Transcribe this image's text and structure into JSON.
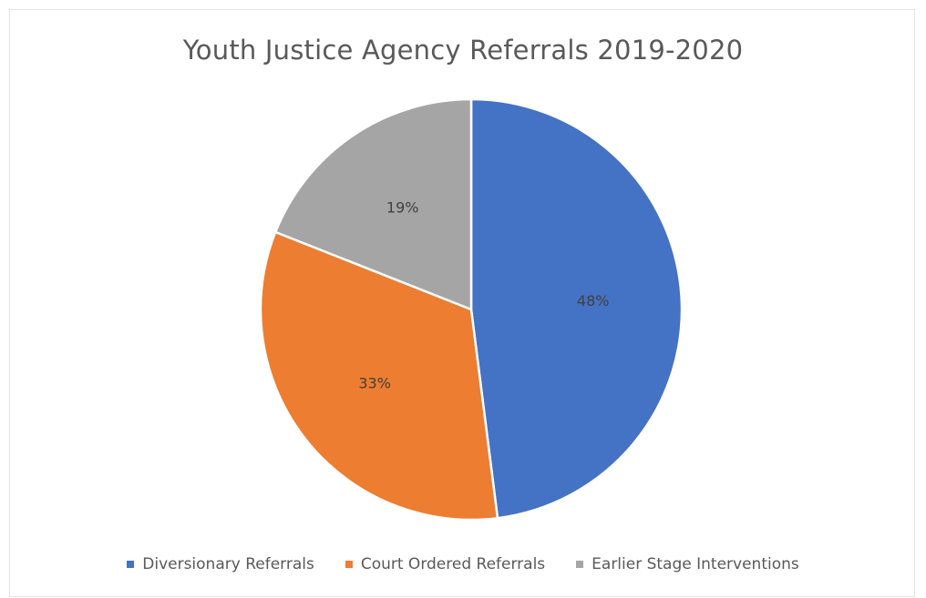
{
  "chart_data": {
    "type": "pie",
    "title": "Youth Justice Agency Referrals 2019-2020",
    "categories": [
      "Diversionary Referrals",
      "Court Ordered Referrals",
      "Earlier Stage Interventions"
    ],
    "values": [
      48,
      33,
      19
    ],
    "data_labels": [
      "48%",
      "33%",
      "19%"
    ],
    "colors": [
      "#4472C4",
      "#ED7D31",
      "#A5A5A5"
    ],
    "legend_position": "bottom",
    "start_angle": "12 o'clock, clockwise"
  }
}
